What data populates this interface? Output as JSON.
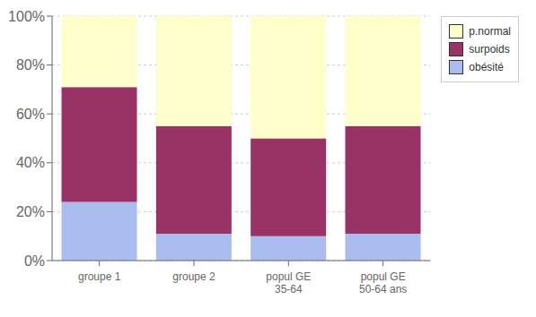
{
  "chart_data": {
    "type": "bar",
    "stacked": true,
    "categories": [
      "groupe 1",
      "groupe 2",
      "popul GE\n35-64",
      "popul GE\n50-64 ans"
    ],
    "series": [
      {
        "name": "obésité",
        "color": "#aabbee",
        "values": [
          24,
          11,
          10,
          11
        ]
      },
      {
        "name": "surpoids",
        "color": "#993366",
        "values": [
          47,
          44,
          40,
          44
        ]
      },
      {
        "name": "p.normal",
        "color": "#ffffcc",
        "values": [
          29,
          45,
          50,
          45
        ]
      }
    ],
    "ylim": [
      0,
      100
    ],
    "yticks": [
      {
        "value": 0,
        "label": "0%"
      },
      {
        "value": 20,
        "label": "20%"
      },
      {
        "value": 40,
        "label": "40%"
      },
      {
        "value": 60,
        "label": "60%"
      },
      {
        "value": 80,
        "label": "80%"
      },
      {
        "value": 100,
        "label": "100%"
      }
    ],
    "grid": true,
    "legend": "upper right"
  }
}
